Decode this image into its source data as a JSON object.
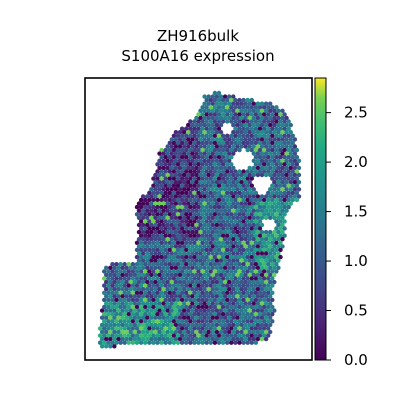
{
  "chart_data": {
    "type": "scatter",
    "title": "ZH916bulk",
    "subtitle": "S100A16 expression",
    "xlabel": "",
    "ylabel": "",
    "axes_ticks": "none",
    "grid": false,
    "colormap": "viridis",
    "colorbar": {
      "range": [
        0.0,
        2.85
      ],
      "ticks": [
        0.0,
        0.5,
        1.0,
        1.5,
        2.0,
        2.5
      ],
      "tick_labels": [
        "0.0",
        "0.5",
        "1.0",
        "1.5",
        "2.0",
        "2.5"
      ],
      "placement": "right"
    },
    "marker": "hexagonal spot",
    "values_summary": "spatial spots colored by S100A16 expression; most values 0.5–2.0, low values clustered in upper-left region, higher values (up to ~2.8) near bottom-left and right edges"
  }
}
